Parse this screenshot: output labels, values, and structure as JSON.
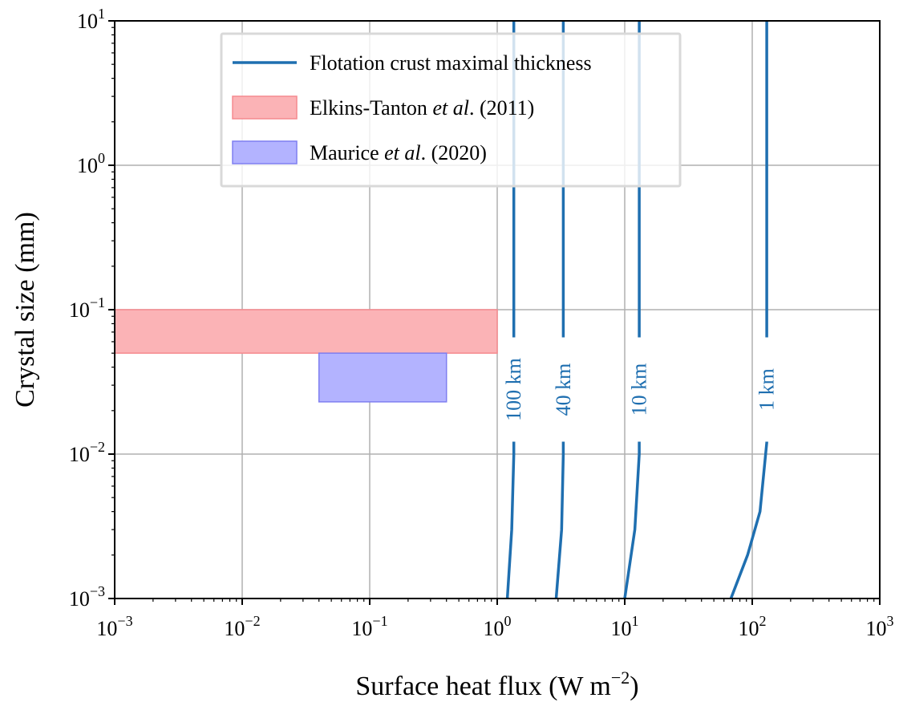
{
  "chart_data": {
    "type": "log-log contour plot",
    "xlabel": "Surface heat flux (W m",
    "xlabel_sup": "−2",
    "xlabel_end": ")",
    "ylabel": "Crystal size (mm)",
    "xlim": [
      0.001,
      1000
    ],
    "ylim": [
      0.001,
      10
    ],
    "xscale": "log",
    "yscale": "log",
    "grid": true,
    "x_ticks": [
      {
        "value": 0.001,
        "base": "10",
        "exp": "−3"
      },
      {
        "value": 0.01,
        "base": "10",
        "exp": "−2"
      },
      {
        "value": 0.1,
        "base": "10",
        "exp": "−1"
      },
      {
        "value": 1,
        "base": "10",
        "exp": "0"
      },
      {
        "value": 10,
        "base": "10",
        "exp": "1"
      },
      {
        "value": 100,
        "base": "10",
        "exp": "2"
      },
      {
        "value": 1000,
        "base": "10",
        "exp": "3"
      }
    ],
    "y_ticks": [
      {
        "value": 0.001,
        "base": "10",
        "exp": "−3"
      },
      {
        "value": 0.01,
        "base": "10",
        "exp": "−2"
      },
      {
        "value": 0.1,
        "base": "10",
        "exp": "−1"
      },
      {
        "value": 1,
        "base": "10",
        "exp": "0"
      },
      {
        "value": 10,
        "base": "10",
        "exp": "1"
      }
    ],
    "colors": {
      "line": "#1f6fb0",
      "elkins_fill": "#fbb3b6",
      "elkins_edge": "#f58a8f",
      "maurice_fill": "#b3b3ff",
      "maurice_edge": "#7f7ff0",
      "grid": "#b0b0b0"
    },
    "regions": [
      {
        "name": "Elkins-Tanton et al. (2011)",
        "x": [
          0.001,
          1
        ],
        "y": [
          0.05,
          0.1
        ],
        "color": "elkins"
      },
      {
        "name": "Maurice et al. (2020)",
        "x": [
          0.04,
          0.4
        ],
        "y": [
          0.023,
          0.05
        ],
        "color": "maurice"
      }
    ],
    "contours": [
      {
        "label": "100 km",
        "points": [
          [
            1.2,
            0.001
          ],
          [
            1.3,
            0.003
          ],
          [
            1.35,
            0.01
          ],
          [
            1.35,
            10
          ]
        ],
        "label_y": 0.028
      },
      {
        "label": "40 km",
        "points": [
          [
            2.9,
            0.001
          ],
          [
            3.2,
            0.003
          ],
          [
            3.3,
            0.01
          ],
          [
            3.3,
            10
          ]
        ],
        "label_y": 0.028
      },
      {
        "label": "10 km",
        "points": [
          [
            10,
            0.001
          ],
          [
            12,
            0.003
          ],
          [
            13,
            0.01
          ],
          [
            13,
            10
          ]
        ],
        "label_y": 0.028
      },
      {
        "label": "1 km",
        "points": [
          [
            68,
            0.001
          ],
          [
            92,
            0.002
          ],
          [
            115,
            0.004
          ],
          [
            130,
            0.012
          ],
          [
            130,
            10
          ]
        ],
        "label_y": 0.028
      }
    ],
    "legend": {
      "placement": "top-center",
      "entries": [
        {
          "type": "line",
          "text": "Flotation crust maximal thickness",
          "color": "line"
        },
        {
          "type": "patch",
          "text_pre": "Elkins-Tanton ",
          "text_ital": "et al",
          "text_post": ". (2011)",
          "color": "elkins"
        },
        {
          "type": "patch",
          "text_pre": "Maurice ",
          "text_ital": "et al",
          "text_post": ". (2020)",
          "color": "maurice"
        }
      ]
    }
  }
}
